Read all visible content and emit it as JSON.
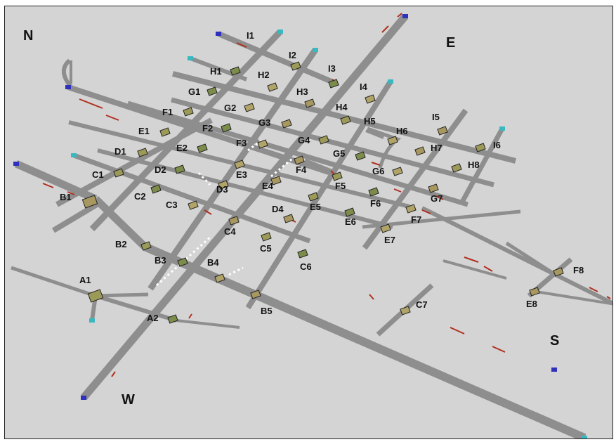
{
  "compass": {
    "north": "N",
    "east": "E",
    "south": "S",
    "west": "W"
  },
  "colors": {
    "background": "#d4d4d4",
    "road": "#8e8e8e",
    "node_fill": "#a89860",
    "vehicle": "#b03020",
    "end_cap_cyan": "#3ab8c0",
    "end_cap_blue": "#3030c0"
  },
  "intersections": [
    {
      "id": "I1",
      "label": "I1"
    },
    {
      "id": "I2",
      "label": "I2"
    },
    {
      "id": "I3",
      "label": "I3"
    },
    {
      "id": "I4",
      "label": "I4"
    },
    {
      "id": "I5",
      "label": "I5"
    },
    {
      "id": "I6",
      "label": "I6"
    },
    {
      "id": "H1",
      "label": "H1"
    },
    {
      "id": "H2",
      "label": "H2"
    },
    {
      "id": "H3",
      "label": "H3"
    },
    {
      "id": "H4",
      "label": "H4"
    },
    {
      "id": "H5",
      "label": "H5"
    },
    {
      "id": "H6",
      "label": "H6"
    },
    {
      "id": "H7",
      "label": "H7"
    },
    {
      "id": "H8",
      "label": "H8"
    },
    {
      "id": "G1",
      "label": "G1"
    },
    {
      "id": "G2",
      "label": "G2"
    },
    {
      "id": "G3",
      "label": "G3"
    },
    {
      "id": "G4",
      "label": "G4"
    },
    {
      "id": "G5",
      "label": "G5"
    },
    {
      "id": "G6",
      "label": "G6"
    },
    {
      "id": "G7",
      "label": "G7"
    },
    {
      "id": "F1",
      "label": "F1"
    },
    {
      "id": "F2",
      "label": "F2"
    },
    {
      "id": "F3",
      "label": "F3"
    },
    {
      "id": "F4",
      "label": "F4"
    },
    {
      "id": "F5",
      "label": "F5"
    },
    {
      "id": "F6",
      "label": "F6"
    },
    {
      "id": "F7",
      "label": "F7"
    },
    {
      "id": "F8",
      "label": "F8"
    },
    {
      "id": "E1",
      "label": "E1"
    },
    {
      "id": "E2",
      "label": "E2"
    },
    {
      "id": "E3",
      "label": "E3"
    },
    {
      "id": "E4",
      "label": "E4"
    },
    {
      "id": "E5",
      "label": "E5"
    },
    {
      "id": "E6",
      "label": "E6"
    },
    {
      "id": "E7",
      "label": "E7"
    },
    {
      "id": "E8",
      "label": "E8"
    },
    {
      "id": "D1",
      "label": "D1"
    },
    {
      "id": "D2",
      "label": "D2"
    },
    {
      "id": "D3",
      "label": "D3"
    },
    {
      "id": "D4",
      "label": "D4"
    },
    {
      "id": "C1",
      "label": "C1"
    },
    {
      "id": "C2",
      "label": "C2"
    },
    {
      "id": "C3",
      "label": "C3"
    },
    {
      "id": "C4",
      "label": "C4"
    },
    {
      "id": "C5",
      "label": "C5"
    },
    {
      "id": "C6",
      "label": "C6"
    },
    {
      "id": "C7",
      "label": "C7"
    },
    {
      "id": "B1",
      "label": "B1"
    },
    {
      "id": "B2",
      "label": "B2"
    },
    {
      "id": "B3",
      "label": "B3"
    },
    {
      "id": "B4",
      "label": "B4"
    },
    {
      "id": "B5",
      "label": "B5"
    },
    {
      "id": "A1",
      "label": "A1"
    },
    {
      "id": "A2",
      "label": "A2"
    }
  ]
}
